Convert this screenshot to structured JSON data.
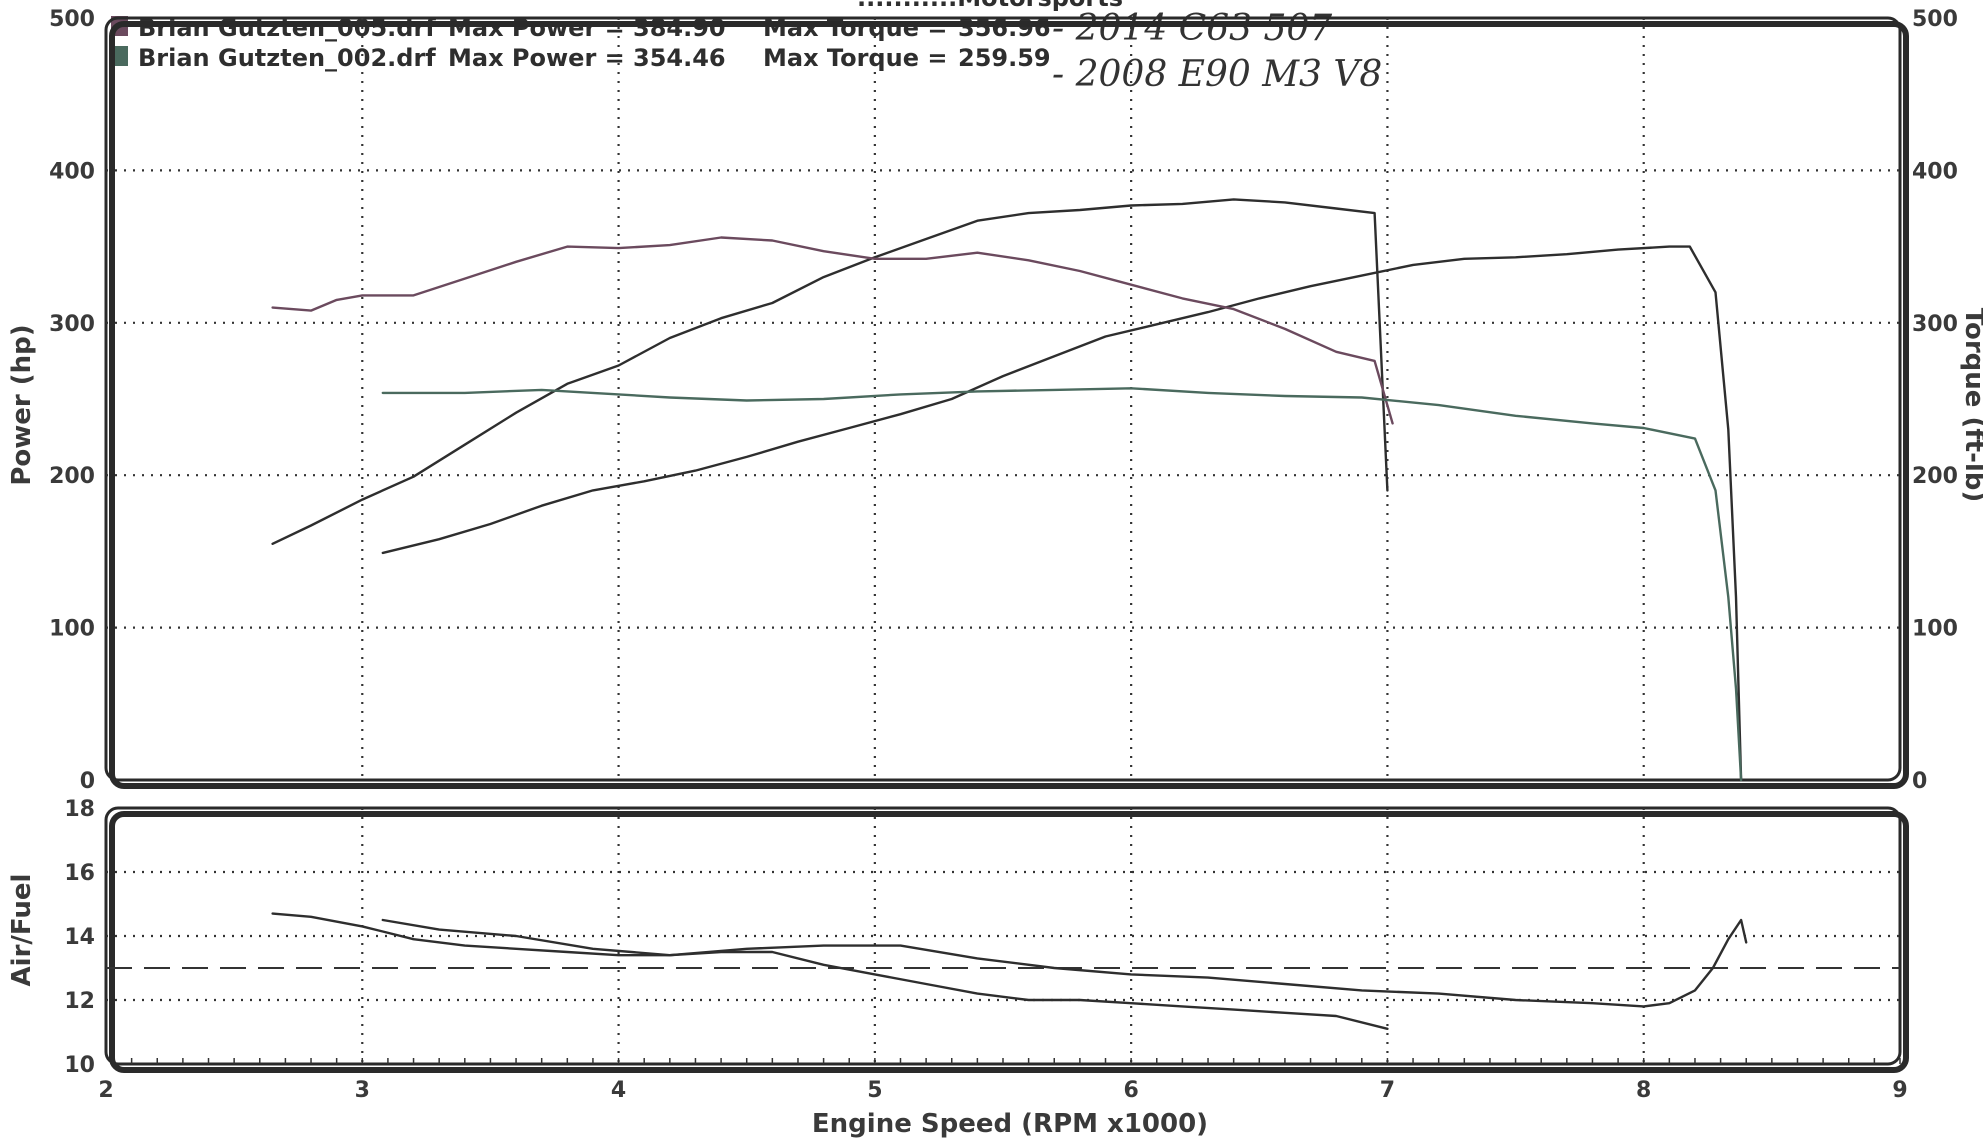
{
  "header": {
    "title_partial": "...........Motorsports",
    "runs": [
      {
        "file_label": "Brian Gutzten_005.drf",
        "max_power_label": "Max Power =",
        "max_power": "384.90",
        "max_torque_label": "Max Torque =",
        "max_torque": "356.96",
        "note": "- 2014 C63 507",
        "swatch_color": "#6b4a5e"
      },
      {
        "file_label": "Brian Gutzten_002.drf",
        "max_power_label": "Max Power =",
        "max_power": "354.46",
        "max_torque_label": "Max Torque =",
        "max_torque": "259.59",
        "note": "- 2008 E90 M3 V8",
        "swatch_color": "#4a6a5e"
      }
    ]
  },
  "chart_data": [
    {
      "type": "line",
      "xlabel": "Engine Speed (RPM x1000)",
      "ylabel": "Power (hp)",
      "y2label": "Torque (ft-lb)",
      "xlim": [
        2,
        9
      ],
      "ylim": [
        0,
        500
      ],
      "y2lim": [
        0,
        500
      ],
      "xticks": [
        "2",
        "3",
        "4",
        "5",
        "6",
        "7",
        "8",
        "9"
      ],
      "yticks": [
        "0",
        "100",
        "200",
        "300",
        "400",
        "500"
      ],
      "y2ticks": [
        "0",
        "100",
        "200",
        "300",
        "400",
        "500"
      ],
      "grid": true,
      "series": [
        {
          "name": "Brian Gutzten_005.drf",
          "color": "#2e2e2e",
          "x": [
            2.65,
            2.8,
            3.0,
            3.2,
            3.4,
            3.6,
            3.8,
            4.0,
            4.2,
            4.4,
            4.6,
            4.8,
            5.0,
            5.2,
            5.4,
            5.6,
            5.8,
            6.0,
            6.2,
            6.4,
            6.6,
            6.8,
            6.95,
            7.0
          ],
          "y": [
            155,
            167,
            184,
            199,
            220,
            241,
            260,
            272,
            290,
            303,
            313,
            330,
            343,
            355,
            367,
            372,
            374,
            377,
            378,
            381,
            379,
            375,
            372,
            190
          ]
        },
        {
          "name": "Brian Gutzten_002.drf",
          "color": "#2e2e2e",
          "x": [
            3.08,
            3.3,
            3.5,
            3.7,
            3.9,
            4.1,
            4.3,
            4.5,
            4.7,
            4.9,
            5.1,
            5.3,
            5.5,
            5.7,
            5.9,
            6.1,
            6.3,
            6.5,
            6.7,
            6.9,
            7.1,
            7.3,
            7.5,
            7.7,
            7.9,
            8.1,
            8.18,
            8.28,
            8.33,
            8.36,
            8.38
          ],
          "y": [
            149,
            158,
            168,
            180,
            190,
            196,
            203,
            212,
            222,
            231,
            240,
            250,
            265,
            278,
            291,
            299,
            307,
            316,
            324,
            331,
            338,
            342,
            343,
            345,
            348,
            350,
            350,
            320,
            230,
            120,
            0
          ]
        },
        {
          "name": "Brian Gutzten_005.drf torque",
          "color": "#6b4a5e",
          "x": [
            2.65,
            2.8,
            2.9,
            3.0,
            3.2,
            3.4,
            3.6,
            3.8,
            4.0,
            4.2,
            4.4,
            4.6,
            4.8,
            5.0,
            5.2,
            5.4,
            5.6,
            5.8,
            6.0,
            6.2,
            6.4,
            6.6,
            6.8,
            6.95,
            7.02
          ],
          "y": [
            310,
            308,
            315,
            318,
            318,
            329,
            340,
            350,
            349,
            351,
            356,
            354,
            347,
            342,
            342,
            346,
            341,
            334,
            325,
            316,
            309,
            296,
            281,
            275,
            234
          ]
        },
        {
          "name": "Brian Gutzten_002.drf torque",
          "color": "#4a6a5e",
          "x": [
            3.08,
            3.4,
            3.7,
            3.9,
            4.2,
            4.5,
            4.8,
            5.1,
            5.4,
            5.7,
            6.0,
            6.3,
            6.6,
            6.9,
            7.2,
            7.5,
            7.8,
            8.0,
            8.2,
            8.28,
            8.33,
            8.36,
            8.38
          ],
          "y": [
            254,
            254,
            256,
            254,
            251,
            249,
            250,
            253,
            255,
            256,
            257,
            254,
            252,
            251,
            246,
            239,
            234,
            231,
            224,
            190,
            120,
            60,
            0
          ]
        }
      ]
    },
    {
      "type": "line",
      "xlabel": "Engine Speed (RPM x1000)",
      "ylabel": "Air/Fuel",
      "xlim": [
        2,
        9
      ],
      "ylim": [
        10,
        18
      ],
      "yticks": [
        "10",
        "12",
        "14",
        "16",
        "18"
      ],
      "reference_line": 13.0,
      "grid": true,
      "series": [
        {
          "name": "Brian Gutzten_005.drf",
          "color": "#2e2e2e",
          "x": [
            2.65,
            2.8,
            3.0,
            3.2,
            3.4,
            3.6,
            3.8,
            4.0,
            4.2,
            4.4,
            4.6,
            4.8,
            5.0,
            5.2,
            5.4,
            5.6,
            5.8,
            6.0,
            6.2,
            6.4,
            6.6,
            6.8,
            7.0
          ],
          "y": [
            14.7,
            14.6,
            14.3,
            13.9,
            13.7,
            13.6,
            13.5,
            13.4,
            13.4,
            13.5,
            13.5,
            13.1,
            12.8,
            12.5,
            12.2,
            12.0,
            12.0,
            11.9,
            11.8,
            11.7,
            11.6,
            11.5,
            11.1
          ]
        },
        {
          "name": "Brian Gutzten_002.drf",
          "color": "#2e2e2e",
          "x": [
            3.08,
            3.3,
            3.6,
            3.9,
            4.2,
            4.5,
            4.8,
            5.1,
            5.4,
            5.7,
            6.0,
            6.3,
            6.6,
            6.9,
            7.2,
            7.5,
            7.8,
            8.0,
            8.1,
            8.2,
            8.27,
            8.33,
            8.38,
            8.4
          ],
          "y": [
            14.5,
            14.2,
            14.0,
            13.6,
            13.4,
            13.6,
            13.7,
            13.7,
            13.3,
            13.0,
            12.8,
            12.7,
            12.5,
            12.3,
            12.2,
            12.0,
            11.9,
            11.8,
            11.9,
            12.3,
            13.0,
            13.9,
            14.5,
            13.8
          ]
        }
      ]
    }
  ]
}
